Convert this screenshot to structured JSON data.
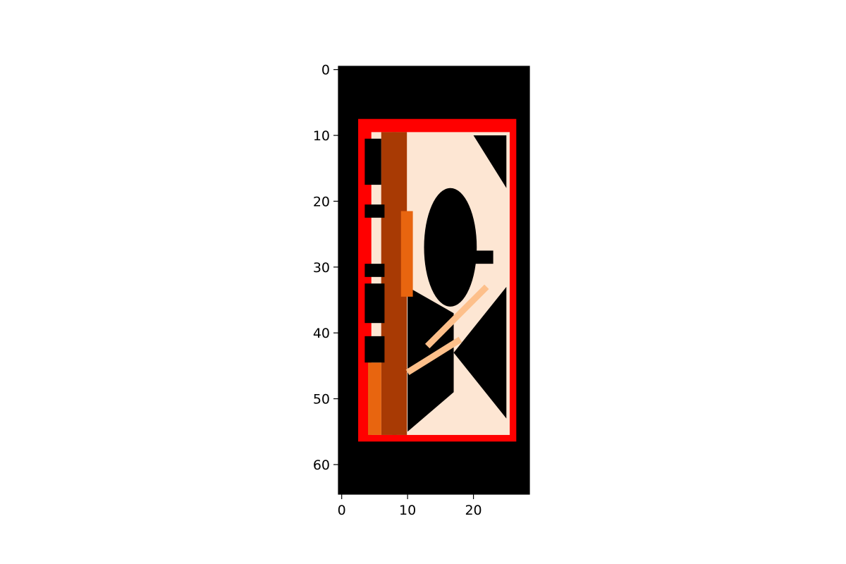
{
  "chart_data": {
    "type": "heatmap",
    "title": "",
    "xlabel": "",
    "ylabel": "",
    "image_shape": [
      65,
      29
    ],
    "xlim": [
      -0.5,
      28.5
    ],
    "ylim": [
      64.5,
      -0.5
    ],
    "x_ticks": [
      0,
      10,
      20
    ],
    "x_tick_labels": [
      "0",
      "10",
      "20"
    ],
    "y_ticks": [
      0,
      10,
      20,
      30,
      40,
      50,
      60
    ],
    "y_tick_labels": [
      "0",
      "10",
      "20",
      "30",
      "40",
      "50",
      "60"
    ],
    "background_color": "#000000",
    "bounding_box": {
      "color": "#ff0000",
      "x_range": [
        3,
        26
      ],
      "y_range": [
        8,
        56
      ]
    },
    "colors": {
      "light": "#fde6d3",
      "cream": "#fdeee0",
      "peach": "#fdbf8a",
      "orange": "#e8650f",
      "dark_orange": "#a83a04"
    },
    "regions": [
      {
        "shape": "rect",
        "color": "light",
        "x": [
          5,
          25
        ],
        "y": [
          10,
          55
        ]
      },
      {
        "shape": "ellipse",
        "color": "black",
        "cx": 16.5,
        "cy": 27,
        "rx": 4,
        "ry": 9
      },
      {
        "shape": "polygon",
        "color": "black",
        "points": [
          [
            25,
            10
          ],
          [
            20,
            10
          ],
          [
            25,
            18
          ]
        ]
      },
      {
        "shape": "polygon",
        "color": "black",
        "points": [
          [
            25,
            33
          ],
          [
            17,
            43
          ],
          [
            25,
            53
          ]
        ]
      },
      {
        "shape": "polygon",
        "color": "black",
        "points": [
          [
            10,
            33
          ],
          [
            17,
            37
          ],
          [
            17,
            49
          ],
          [
            10,
            55
          ]
        ]
      },
      {
        "shape": "rect",
        "color": "dark_orange",
        "x": [
          6.5,
          7.8
        ],
        "y": [
          10,
          55
        ]
      },
      {
        "shape": "rect",
        "color": "dark_orange",
        "x": [
          8.2,
          9.4
        ],
        "y": [
          10,
          55
        ]
      },
      {
        "shape": "rect",
        "color": "orange",
        "x": [
          9.5,
          10.3
        ],
        "y": [
          22,
          34
        ]
      },
      {
        "shape": "rect",
        "color": "orange",
        "x": [
          4.5,
          5.5
        ],
        "y": [
          45,
          55
        ]
      },
      {
        "shape": "line",
        "color": "peach",
        "points": [
          [
            13,
            42
          ],
          [
            22,
            33
          ]
        ]
      },
      {
        "shape": "line",
        "color": "peach",
        "points": [
          [
            10,
            46
          ],
          [
            18,
            41
          ]
        ]
      },
      {
        "shape": "rect",
        "color": "black",
        "x": [
          4,
          5.5
        ],
        "y": [
          11,
          17
        ]
      },
      {
        "shape": "rect",
        "color": "black",
        "x": [
          4,
          6
        ],
        "y": [
          21,
          22
        ]
      },
      {
        "shape": "rect",
        "color": "black",
        "x": [
          4,
          6
        ],
        "y": [
          30,
          31
        ]
      },
      {
        "shape": "rect",
        "color": "black",
        "x": [
          4,
          6
        ],
        "y": [
          33,
          38
        ]
      },
      {
        "shape": "rect",
        "color": "black",
        "x": [
          4,
          6
        ],
        "y": [
          41,
          44
        ]
      },
      {
        "shape": "rect",
        "color": "black",
        "x": [
          20.5,
          22.5
        ],
        "y": [
          28,
          29
        ]
      }
    ]
  }
}
